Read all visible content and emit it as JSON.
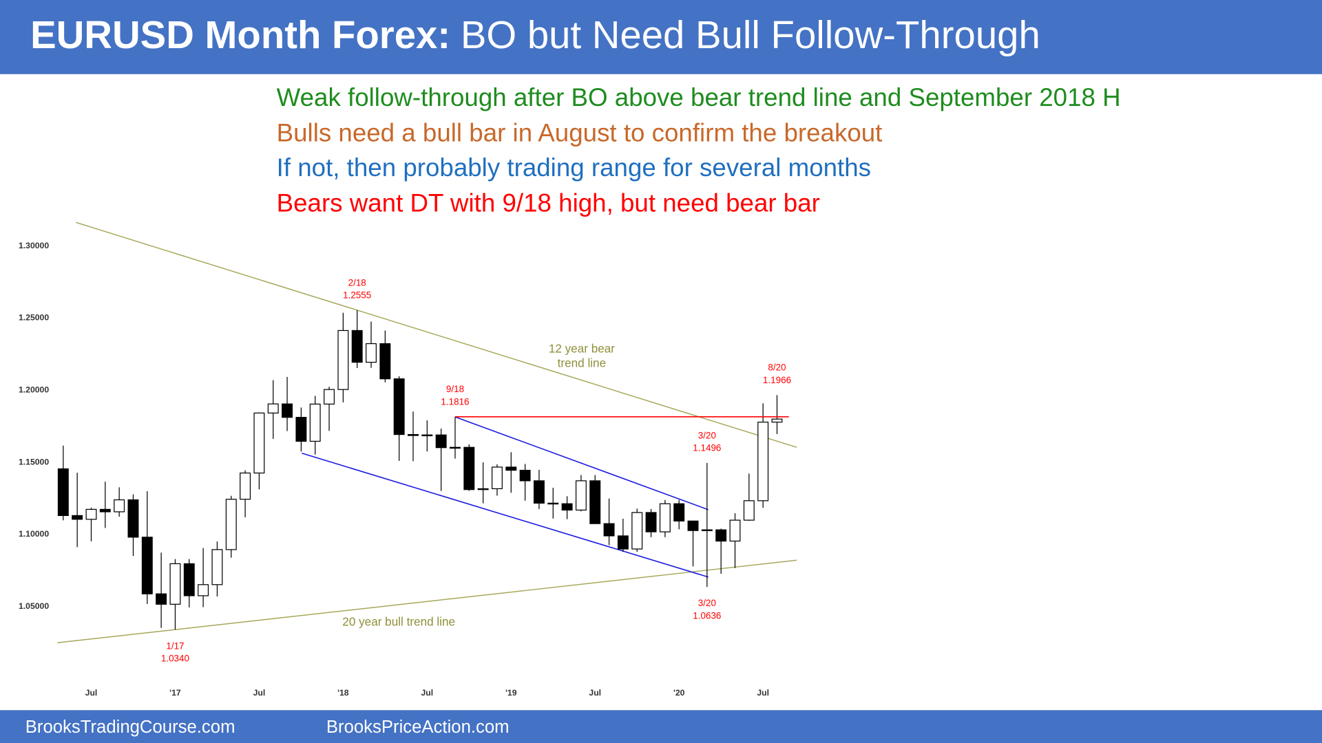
{
  "title": {
    "lead": "EURUSD Month Forex:",
    "rest": "BO but Need Bull Follow-Through"
  },
  "notes": [
    "Weak follow-through after BO above bear trend line and September 2018 H",
    "Bulls need a bull bar in August to confirm the breakout",
    "If not, then probably trading range for several months",
    "Bears want DT with 9/18 high, but need bear bar"
  ],
  "footer": [
    "BrooksTradingCourse.com",
    "BrooksPriceAction.com"
  ],
  "chart_data": {
    "type": "candlestick",
    "categories": [
      null,
      null,
      "Jul",
      null,
      null,
      null,
      null,
      null,
      "'17",
      null,
      null,
      null,
      null,
      null,
      "Jul",
      null,
      null,
      null,
      null,
      null,
      "'18",
      null,
      null,
      null,
      null,
      null,
      "Jul",
      null,
      null,
      null,
      null,
      null,
      "'19",
      null,
      null,
      null,
      null,
      null,
      "Jul",
      null,
      null,
      null,
      null,
      null,
      "'20",
      null,
      null,
      null,
      null,
      null,
      "Jul",
      null
    ],
    "open": [
      1.1455,
      1.1131,
      1.1105,
      1.1174,
      1.1157,
      1.124,
      1.0981,
      1.0588,
      1.0516,
      1.0797,
      1.0575,
      1.0652,
      1.0895,
      1.1244,
      1.1426,
      1.1842,
      1.1905,
      1.1812,
      1.1646,
      1.1904,
      1.2005,
      1.2414,
      1.2194,
      1.2323,
      1.2079,
      1.1693,
      1.1686,
      1.169,
      1.1602,
      1.1604,
      1.1311,
      1.1317,
      1.1467,
      1.1445,
      1.1372,
      1.1217,
      1.1213,
      1.1169,
      1.1372,
      1.1075,
      1.099,
      1.0899,
      1.1152,
      1.1018,
      1.1213,
      1.1093,
      1.1027,
      1.1032,
      1.0954,
      1.1099,
      1.1234,
      1.1779
    ],
    "high": [
      1.1616,
      1.1428,
      1.1186,
      1.1366,
      1.1327,
      1.1278,
      1.13,
      1.0874,
      1.0829,
      1.0829,
      1.0906,
      1.0951,
      1.1268,
      1.1445,
      1.1846,
      1.207,
      1.2092,
      1.188,
      1.1961,
      1.2024,
      1.2537,
      1.2555,
      1.2476,
      1.2414,
      1.2097,
      1.1852,
      1.1791,
      1.1734,
      1.1816,
      1.1625,
      1.15,
      1.1486,
      1.157,
      1.1489,
      1.1448,
      1.1324,
      1.1265,
      1.1412,
      1.1412,
      1.1249,
      1.1109,
      1.1179,
      1.1176,
      1.1239,
      1.1239,
      1.1096,
      1.1496,
      1.104,
      1.1147,
      1.1422,
      1.1909,
      1.1966
    ],
    "low": [
      1.1098,
      1.0912,
      1.0952,
      1.1045,
      1.1123,
      1.0851,
      1.0518,
      1.0352,
      1.034,
      1.0494,
      1.0496,
      1.057,
      1.0839,
      1.1119,
      1.1313,
      1.1662,
      1.1717,
      1.1575,
      1.1554,
      1.1718,
      1.1916,
      1.2154,
      1.2155,
      1.2055,
      1.151,
      1.1508,
      1.1575,
      1.1301,
      1.1526,
      1.1302,
      1.1216,
      1.1269,
      1.1289,
      1.1234,
      1.1176,
      1.111,
      1.1106,
      1.116,
      1.1101,
      1.0926,
      1.0879,
      1.0879,
      1.0981,
      1.0981,
      1.1036,
      1.0778,
      1.0636,
      1.0727,
      1.0767,
      1.1094,
      1.1185,
      1.1696
    ],
    "close": [
      1.1131,
      1.1105,
      1.1174,
      1.1157,
      1.124,
      1.0981,
      1.0588,
      1.0516,
      1.0797,
      1.0575,
      1.0652,
      1.0895,
      1.1244,
      1.1426,
      1.1842,
      1.1905,
      1.1812,
      1.1646,
      1.1904,
      1.2005,
      1.2414,
      1.2194,
      1.2323,
      1.2079,
      1.1693,
      1.1686,
      1.169,
      1.1602,
      1.1604,
      1.1311,
      1.1317,
      1.1467,
      1.1445,
      1.1372,
      1.1217,
      1.1213,
      1.1169,
      1.1372,
      1.1075,
      1.099,
      1.0899,
      1.1152,
      1.1018,
      1.1213,
      1.1093,
      1.1027,
      1.1032,
      1.0954,
      1.1099,
      1.1234,
      1.1779,
      1.18
    ],
    "ylim": [
      1.01,
      1.32
    ],
    "yticks": [
      {
        "value": 1.05,
        "label": "1.05000"
      },
      {
        "value": 1.1,
        "label": "1.10000"
      },
      {
        "value": 1.15,
        "label": "1.15000"
      },
      {
        "value": 1.2,
        "label": "1.20000"
      },
      {
        "value": 1.25,
        "label": "1.25000"
      },
      {
        "value": 1.3,
        "label": "1.30000"
      }
    ],
    "grid": false,
    "up_color": "#ffffff",
    "down_color": "#000000",
    "annotations": [
      {
        "date": "2/18",
        "price": 1.2555
      },
      {
        "date": "9/18",
        "price": 1.1816
      },
      {
        "date": "8/20",
        "price": 1.1966
      },
      {
        "date": "3/20",
        "price": 1.1496
      },
      {
        "date": "3/20",
        "price": 1.0636
      },
      {
        "date": "1/17",
        "price": {
          "value": 1.034,
          "label": "1.0340"
        }
      }
    ],
    "trend_line_labels": [
      [
        "12 year bear",
        "trend line"
      ],
      [
        "20 year bull trend line"
      ]
    ]
  }
}
